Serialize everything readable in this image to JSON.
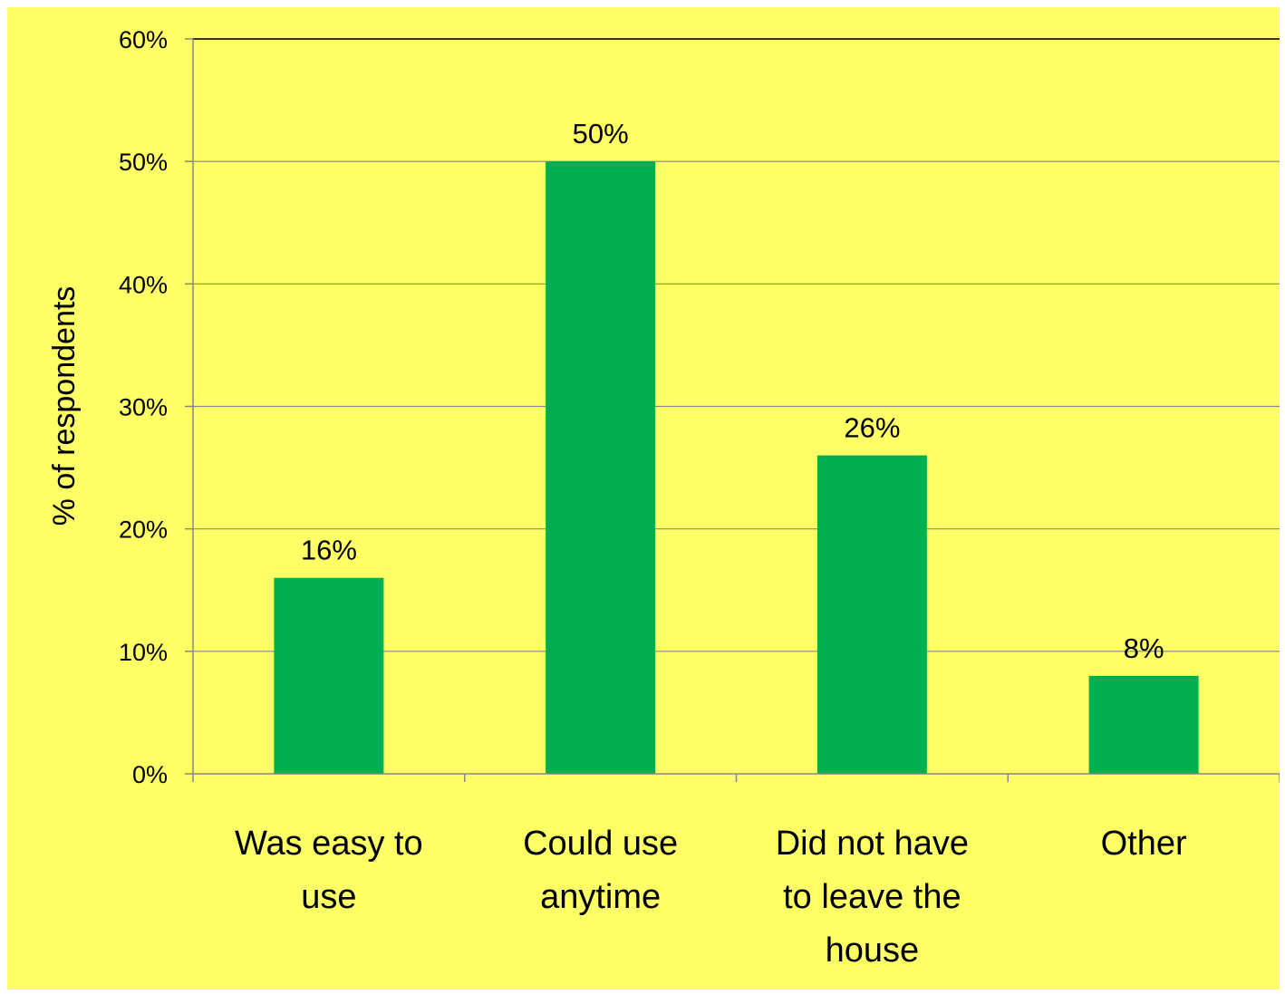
{
  "chart_data": {
    "type": "bar",
    "title": "",
    "xlabel": "",
    "ylabel": "% of respondents",
    "categories": [
      [
        "Was easy to",
        "use"
      ],
      [
        "Could use",
        "anytime"
      ],
      [
        "Did not have",
        "to leave the",
        "house"
      ],
      [
        "Other"
      ]
    ],
    "values": [
      16,
      50,
      26,
      8
    ],
    "data_labels": [
      "16%",
      "50%",
      "26%",
      "8%"
    ],
    "ylim": [
      0,
      60
    ],
    "yticks": [
      0,
      10,
      20,
      30,
      40,
      50,
      60
    ],
    "ytick_labels": [
      "0%",
      "10%",
      "20%",
      "30%",
      "40%",
      "50%",
      "60%"
    ],
    "grid": true,
    "legend": "none",
    "colors": {
      "background": "#ffff66",
      "bar": "#00b050",
      "gridline": "#868686",
      "axis": "#868686"
    }
  }
}
